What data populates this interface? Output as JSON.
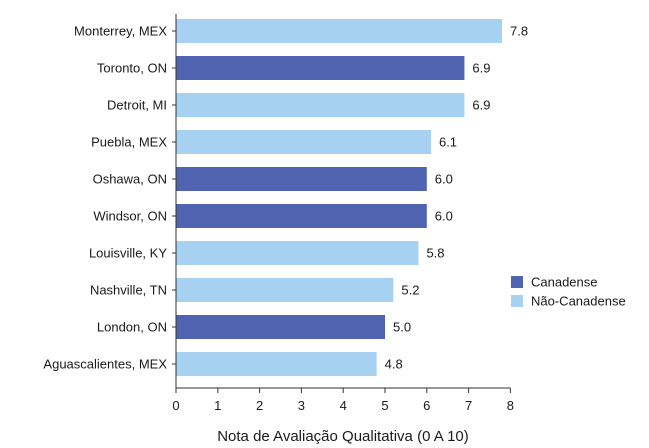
{
  "chart_data": {
    "type": "bar",
    "orientation": "horizontal",
    "categories": [
      "Monterrey, MEX",
      "Toronto, ON",
      "Detroit, MI",
      "Puebla, MEX",
      "Oshawa, ON",
      "Windsor, ON",
      "Louisville, KY",
      "Nashville, TN",
      "London, ON",
      "Aguascalientes, MEX"
    ],
    "values": [
      7.8,
      6.9,
      6.9,
      6.1,
      6.0,
      6.0,
      5.8,
      5.2,
      5.0,
      4.8
    ],
    "value_labels": [
      "7.8",
      "6.9",
      "6.9",
      "6.1",
      "6.0",
      "6.0",
      "5.8",
      "5.2",
      "5.0",
      "4.8"
    ],
    "groups": [
      "Não-Canadense",
      "Canadense",
      "Não-Canadense",
      "Não-Canadense",
      "Canadense",
      "Canadense",
      "Não-Canadense",
      "Não-Canadense",
      "Canadense",
      "Não-Canadense"
    ],
    "legend": [
      {
        "name": "Canadense",
        "color": "#4f63b0"
      },
      {
        "name": "Não-Canadense",
        "color": "#a6d1f0"
      }
    ],
    "legend_position": "right",
    "xlabel": "Nota de Avaliação Qualitativa (0 A 10)",
    "ylabel": "",
    "title": "",
    "xlim": [
      0,
      8
    ],
    "xticks": [
      "0",
      "1",
      "2",
      "3",
      "4",
      "5",
      "6",
      "7",
      "8"
    ],
    "grid": false
  }
}
